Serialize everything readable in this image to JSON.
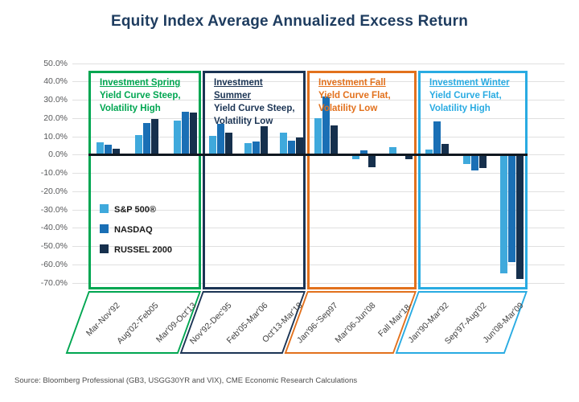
{
  "title": "Equity Index Average Annualized Excess Return",
  "source": "Source: Bloomberg Professional (GB3, USGG30YR and VIX), CME Economic Research Calculations",
  "chart_data": {
    "type": "bar",
    "title": "Equity Index Average Annualized Excess Return",
    "ylim": [
      -70,
      50
    ],
    "yticks": [
      "50.0%",
      "40.0%",
      "30.0%",
      "20.0%",
      "10.0%",
      "0.0%",
      "-10.0%",
      "-20.0%",
      "-30.0%",
      "-40.0%",
      "-50.0%",
      "-60.0%",
      "-70.0%"
    ],
    "grid": true,
    "legend_position": "inside-first-quadrant",
    "series": [
      {
        "name": "S&P 500®",
        "color": "#3fa9dc"
      },
      {
        "name": "NASDAQ",
        "color": "#1a6fb5"
      },
      {
        "name": "RUSSEL 2000",
        "color": "#16304d"
      }
    ],
    "quadrants": [
      {
        "title": "Investment Spring",
        "subtitle1": "Yield Curve Steep,",
        "subtitle2": "Volatility High",
        "color": "#00a651",
        "groups": [
          {
            "label": "Mar-Nov'92",
            "values": [
              7.0,
              5.5,
              3.5
            ]
          },
          {
            "label": "Aug'02-'Feb05",
            "values": [
              11.0,
              17.5,
              19.5
            ]
          },
          {
            "label": "Mar'09-Oct'13",
            "values": [
              19.0,
              23.5,
              23.0
            ]
          }
        ]
      },
      {
        "title": "Investment Summer",
        "subtitle1": "Yield Curve Steep,",
        "subtitle2": "Volatility Low",
        "color": "#1b3454",
        "groups": [
          {
            "label": "Nov'92-Dec'95",
            "values": [
              10.5,
              17.0,
              12.0
            ]
          },
          {
            "label": "Feb'05-Mar'06",
            "values": [
              6.5,
              7.5,
              15.5
            ]
          },
          {
            "label": "Oct'13-Mar'18",
            "values": [
              12.0,
              8.0,
              9.5
            ]
          }
        ]
      },
      {
        "title": "Investment Fall",
        "subtitle1": "Yield Curve Flat,",
        "subtitle2": "Volatility Low",
        "color": "#e2711d",
        "groups": [
          {
            "label": "Jan'96-'Sep97",
            "values": [
              20.0,
              32.0,
              16.0
            ]
          },
          {
            "label": "Mar'06-Jun'08",
            "values": [
              -1.5,
              2.5,
              -6.0
            ]
          },
          {
            "label": "Fall Mar'18-",
            "values": [
              4.5,
              0,
              -1.5
            ]
          }
        ]
      },
      {
        "title": "Investment Winter",
        "subtitle1": "Yield Curve Flat,",
        "subtitle2": "Volatility High",
        "color": "#29abe2",
        "groups": [
          {
            "label": "Jan'90-Mar'92",
            "values": [
              3.0,
              18.5,
              6.0
            ]
          },
          {
            "label": "Sep'97-Aug'02",
            "values": [
              -4.5,
              -8.0,
              -6.5
            ]
          },
          {
            "label": "Jun'08-Mar'09",
            "values": [
              -64.0,
              -58.0,
              -67.0
            ]
          }
        ]
      }
    ]
  }
}
